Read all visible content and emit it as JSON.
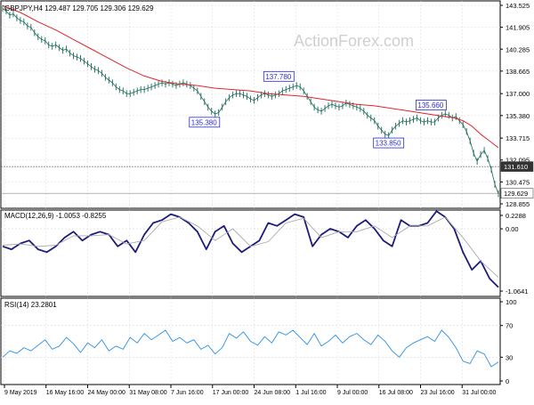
{
  "header": {
    "symbol_line": "GBPJPY,H4  129.487 129.705 129.306 129.629",
    "watermark": "ActionForex.com"
  },
  "colors": {
    "price": "#1a6b5a",
    "ma": "#e0262a",
    "macd_line": "#1c1c7a",
    "macd_signal": "#aaaaaa",
    "rsi": "#2d8fe6",
    "grid": "#d8d8d8",
    "level_line": "#888888",
    "axis": "#000000",
    "label_box": "#2a2ad8"
  },
  "chart_data": [
    {
      "type": "line",
      "panel": "price",
      "ylim": [
        128.855,
        143.525
      ],
      "y_ticks": [
        "143.525",
        "141.905",
        "140.285",
        "138.665",
        "137.000",
        "135.380",
        "133.715",
        "132.095",
        "130.475",
        "128.855"
      ],
      "x_ticks": [
        "9 May 2019",
        "16 May 16:00",
        "24 May 00:00",
        "31 May 08:00",
        "7 Jun 16:00",
        "17 Jun 00:00",
        "24 Jun 08:00",
        "1 Jul 16:00",
        "9 Jul 00:00",
        "16 Jul 08:00",
        "23 Jul 16:00",
        "31 Jul 00:00"
      ],
      "series": [
        {
          "role": "price",
          "x": [
            0,
            4,
            8,
            12,
            16,
            20,
            24,
            28,
            32,
            36,
            40,
            44,
            48,
            52,
            56,
            60,
            64,
            68,
            72,
            76,
            80,
            84,
            88,
            92,
            96,
            100,
            104,
            108,
            112,
            116,
            120,
            124,
            128,
            132,
            136,
            140,
            144,
            148,
            152,
            156,
            160,
            164,
            168,
            172,
            176,
            180,
            184,
            188,
            192,
            196,
            200,
            204,
            208,
            212,
            216,
            220,
            224,
            228,
            232,
            236,
            240,
            244,
            248,
            252,
            256,
            260,
            264,
            268,
            272,
            276,
            280,
            284,
            288,
            292,
            296,
            300,
            304,
            308,
            312,
            316,
            320,
            324,
            328,
            332,
            336,
            340,
            344,
            348,
            352,
            356,
            360,
            364,
            368,
            372,
            376,
            380,
            384,
            388,
            392,
            396,
            400,
            404,
            408,
            412,
            416,
            420,
            424,
            428,
            432,
            436,
            440,
            444,
            448,
            452,
            456,
            460,
            464,
            468,
            472,
            476,
            480,
            484,
            488,
            492,
            496,
            500,
            504,
            508,
            512,
            516,
            520,
            524,
            528,
            532,
            536,
            540,
            544,
            548,
            552,
            556,
            560
          ],
          "values": [
            143.3,
            143.1,
            142.8,
            142.9,
            142.6,
            142.4,
            142.3,
            142.0,
            141.9,
            141.5,
            141.2,
            141.0,
            140.9,
            140.6,
            140.5,
            140.6,
            140.4,
            140.2,
            140.3,
            140.0,
            139.8,
            139.7,
            139.6,
            139.4,
            139.2,
            139.0,
            138.8,
            138.7,
            138.5,
            138.2,
            138.0,
            137.8,
            137.5,
            137.3,
            137.2,
            137.0,
            137.0,
            137.1,
            137.2,
            137.3,
            137.3,
            137.4,
            137.5,
            137.6,
            137.7,
            137.8,
            137.7,
            137.8,
            137.7,
            137.6,
            137.7,
            137.8,
            137.7,
            137.6,
            137.4,
            137.2,
            136.8,
            136.4,
            136.0,
            135.7,
            135.5,
            135.6,
            136.0,
            136.4,
            136.7,
            136.9,
            137.0,
            137.0,
            136.9,
            136.8,
            136.6,
            136.5,
            136.7,
            136.9,
            137.0,
            136.9,
            136.8,
            136.9,
            137.0,
            137.2,
            137.3,
            137.4,
            137.5,
            137.6,
            137.5,
            137.2,
            136.8,
            136.4,
            136.0,
            135.8,
            135.7,
            135.9,
            136.1,
            136.2,
            136.1,
            136.0,
            136.1,
            136.3,
            136.2,
            136.1,
            136.0,
            135.9,
            135.7,
            135.4,
            135.2,
            135.0,
            134.6,
            134.3,
            134.0,
            133.9,
            134.3,
            134.6,
            134.8,
            135.0,
            134.9,
            135.0,
            135.1,
            135.2,
            135.0,
            134.9,
            135.0,
            134.9,
            134.9,
            135.2,
            135.4,
            135.5,
            135.4,
            135.2,
            135.3,
            135.0,
            134.7,
            134.2,
            133.5,
            132.6,
            132.0,
            132.5,
            132.8,
            132.2,
            131.4,
            130.3,
            129.6
          ]
        },
        {
          "role": "moving_average",
          "x": [
            0,
            20,
            40,
            60,
            80,
            100,
            120,
            140,
            160,
            180,
            200,
            220,
            240,
            260,
            280,
            300,
            320,
            340,
            360,
            380,
            400,
            420,
            440,
            460,
            480,
            500,
            510,
            520,
            530,
            540,
            550,
            560
          ],
          "values": [
            143.5,
            143.0,
            142.3,
            141.7,
            141.0,
            140.3,
            139.6,
            138.9,
            138.3,
            137.9,
            137.7,
            137.6,
            137.4,
            137.3,
            137.2,
            137.0,
            136.9,
            136.8,
            136.6,
            136.4,
            136.2,
            136.1,
            135.9,
            135.7,
            135.5,
            135.3,
            135.2,
            135.0,
            134.6,
            134.0,
            133.5,
            133.0
          ]
        }
      ],
      "annotations": [
        {
          "x": 228,
          "y": 135.38,
          "label": "135.380"
        },
        {
          "x": 312,
          "y": 137.78,
          "label": "137.780"
        },
        {
          "x": 436,
          "y": 133.85,
          "label": "133.850"
        },
        {
          "x": 484,
          "y": 135.66,
          "label": "135.660"
        }
      ],
      "price_levels": [
        {
          "value": 131.61,
          "label": "131.610",
          "style": "dark"
        },
        {
          "value": 129.629,
          "label": "129.629",
          "style": "current"
        }
      ]
    },
    {
      "type": "line",
      "panel": "macd",
      "title": "MACD(12,26,9) -1.0053 -0.8255",
      "ylim": [
        -1.0641,
        0.2288
      ],
      "y_ticks": [
        "0.2288",
        "0.00",
        "-1.0641"
      ],
      "series": [
        {
          "role": "macd",
          "x": [
            0,
            10,
            20,
            30,
            40,
            50,
            60,
            70,
            80,
            90,
            100,
            110,
            120,
            130,
            140,
            150,
            160,
            170,
            180,
            190,
            200,
            210,
            220,
            230,
            240,
            250,
            260,
            270,
            280,
            290,
            300,
            310,
            320,
            330,
            340,
            350,
            360,
            370,
            380,
            390,
            400,
            410,
            420,
            430,
            440,
            450,
            460,
            470,
            480,
            490,
            500,
            510,
            520,
            530,
            540,
            550,
            560
          ],
          "values": [
            -0.3,
            -0.35,
            -0.25,
            -0.2,
            -0.35,
            -0.4,
            -0.3,
            -0.15,
            -0.05,
            -0.2,
            -0.1,
            -0.05,
            -0.1,
            -0.3,
            -0.2,
            -0.4,
            -0.1,
            0.1,
            0.15,
            0.25,
            0.2,
            0.1,
            -0.05,
            -0.35,
            -0.05,
            0.05,
            -0.25,
            -0.4,
            -0.3,
            -0.2,
            0.1,
            0.05,
            0.15,
            0.25,
            0.2,
            -0.3,
            -0.1,
            0.0,
            -0.05,
            -0.15,
            0.05,
            0.15,
            0.0,
            -0.2,
            -0.3,
            0.15,
            0.05,
            0.05,
            0.1,
            0.3,
            0.2,
            0.0,
            -0.4,
            -0.7,
            -0.55,
            -0.85,
            -1.0
          ]
        },
        {
          "role": "signal",
          "x": [
            0,
            20,
            40,
            60,
            80,
            100,
            120,
            140,
            160,
            180,
            200,
            220,
            240,
            260,
            280,
            300,
            320,
            340,
            360,
            380,
            400,
            420,
            440,
            460,
            480,
            500,
            520,
            540,
            560
          ],
          "values": [
            -0.28,
            -0.26,
            -0.3,
            -0.28,
            -0.12,
            -0.12,
            -0.1,
            -0.26,
            -0.2,
            0.12,
            0.2,
            0.05,
            -0.2,
            0.0,
            -0.3,
            -0.22,
            0.1,
            0.18,
            -0.15,
            -0.05,
            -0.05,
            0.05,
            -0.15,
            0.05,
            0.05,
            0.2,
            -0.15,
            -0.55,
            -0.83
          ]
        }
      ]
    },
    {
      "type": "line",
      "panel": "rsi",
      "title": "RSI(14) 23.2801",
      "ylim": [
        0,
        100
      ],
      "y_ticks": [
        "100",
        "70",
        "30",
        "0"
      ],
      "series": [
        {
          "role": "rsi",
          "x": [
            0,
            8,
            16,
            24,
            32,
            40,
            48,
            56,
            64,
            72,
            80,
            88,
            96,
            104,
            112,
            120,
            128,
            136,
            144,
            152,
            160,
            168,
            176,
            184,
            192,
            200,
            208,
            216,
            224,
            232,
            240,
            248,
            256,
            264,
            272,
            280,
            288,
            296,
            304,
            312,
            320,
            328,
            336,
            344,
            352,
            360,
            368,
            376,
            384,
            392,
            400,
            408,
            416,
            424,
            432,
            440,
            448,
            456,
            464,
            472,
            480,
            488,
            496,
            504,
            512,
            520,
            528,
            536,
            544,
            552,
            560
          ],
          "values": [
            30,
            38,
            35,
            42,
            38,
            45,
            52,
            40,
            44,
            55,
            47,
            36,
            48,
            42,
            52,
            38,
            44,
            40,
            55,
            48,
            60,
            52,
            58,
            64,
            50,
            55,
            48,
            52,
            40,
            45,
            34,
            42,
            60,
            54,
            62,
            50,
            45,
            56,
            48,
            62,
            58,
            64,
            55,
            46,
            60,
            44,
            50,
            58,
            48,
            56,
            60,
            52,
            46,
            58,
            50,
            38,
            30,
            42,
            48,
            52,
            56,
            50,
            64,
            55,
            42,
            25,
            22,
            38,
            34,
            18,
            24
          ]
        }
      ]
    }
  ]
}
